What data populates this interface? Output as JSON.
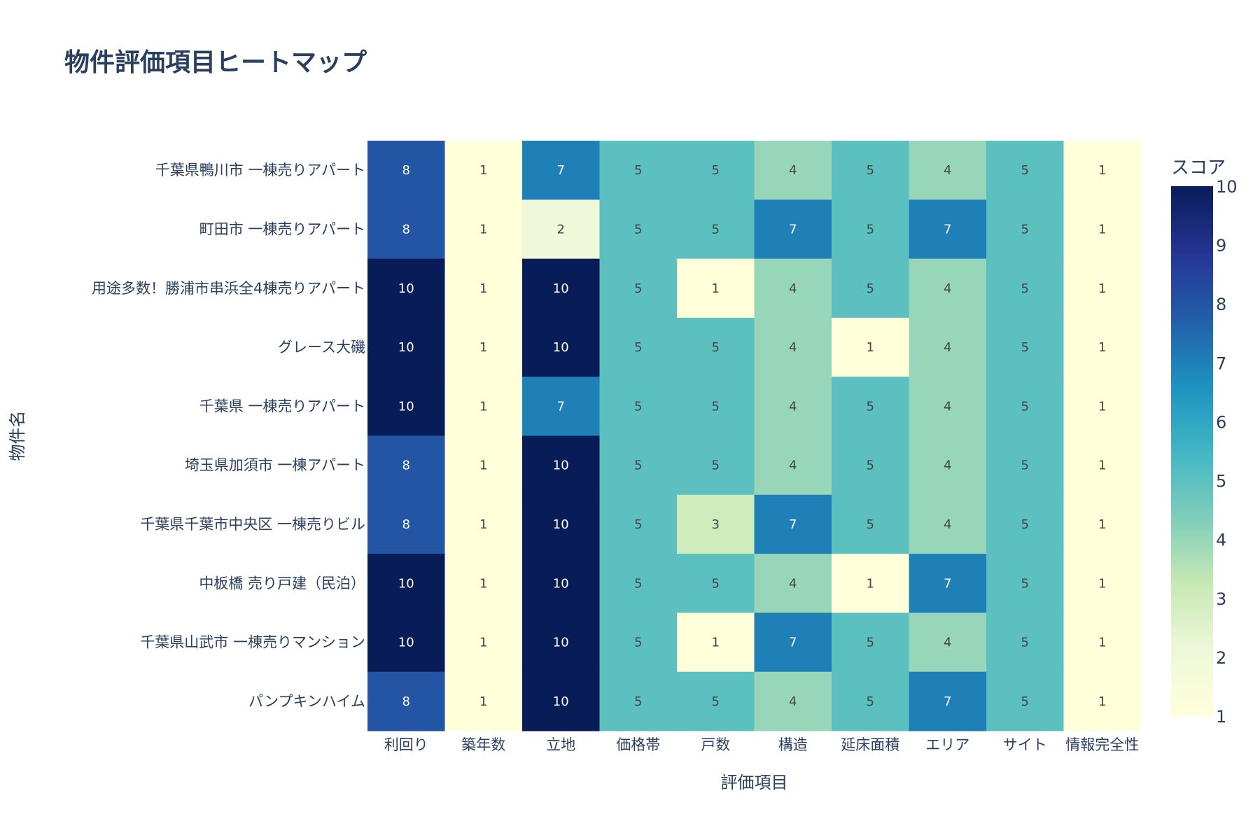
{
  "chart_data": {
    "type": "heatmap",
    "title": "物件評価項目ヒートマップ",
    "xlabel": "評価項目",
    "ylabel": "物件名",
    "x": [
      "利回り",
      "築年数",
      "立地",
      "価格帯",
      "戸数",
      "構造",
      "延床面積",
      "エリア",
      "サイト",
      "情報完全性"
    ],
    "y": [
      "千葉県鴨川市 一棟売りアパート",
      "町田市 一棟売りアパート",
      "用途多数！勝浦市串浜全4棟売りアパート",
      "グレース大磯",
      "千葉県 一棟売りアパート",
      "埼玉県加須市 一棟アパート",
      "千葉県千葉市中央区 一棟売りビル",
      "中板橋 売り戸建（民泊）",
      "千葉県山武市 一棟売りマンション",
      "パンプキンハイム"
    ],
    "z": [
      [
        8,
        1,
        7,
        5,
        5,
        4,
        5,
        4,
        5,
        1
      ],
      [
        8,
        1,
        2,
        5,
        5,
        7,
        5,
        7,
        5,
        1
      ],
      [
        10,
        1,
        10,
        5,
        1,
        4,
        5,
        4,
        5,
        1
      ],
      [
        10,
        1,
        10,
        5,
        5,
        4,
        1,
        4,
        5,
        1
      ],
      [
        10,
        1,
        7,
        5,
        5,
        4,
        5,
        4,
        5,
        1
      ],
      [
        8,
        1,
        10,
        5,
        5,
        4,
        5,
        4,
        5,
        1
      ],
      [
        8,
        1,
        10,
        5,
        3,
        7,
        5,
        4,
        5,
        1
      ],
      [
        10,
        1,
        10,
        5,
        5,
        4,
        1,
        7,
        5,
        1
      ],
      [
        10,
        1,
        10,
        5,
        1,
        7,
        5,
        4,
        5,
        1
      ],
      [
        8,
        1,
        10,
        5,
        5,
        4,
        5,
        7,
        5,
        1
      ]
    ],
    "colorscale": "YlGnBu",
    "zlim": [
      1,
      10
    ],
    "colorbar": {
      "title": "スコア",
      "ticks": [
        "1",
        "2",
        "3",
        "4",
        "5",
        "6",
        "7",
        "8",
        "9",
        "10"
      ]
    }
  }
}
